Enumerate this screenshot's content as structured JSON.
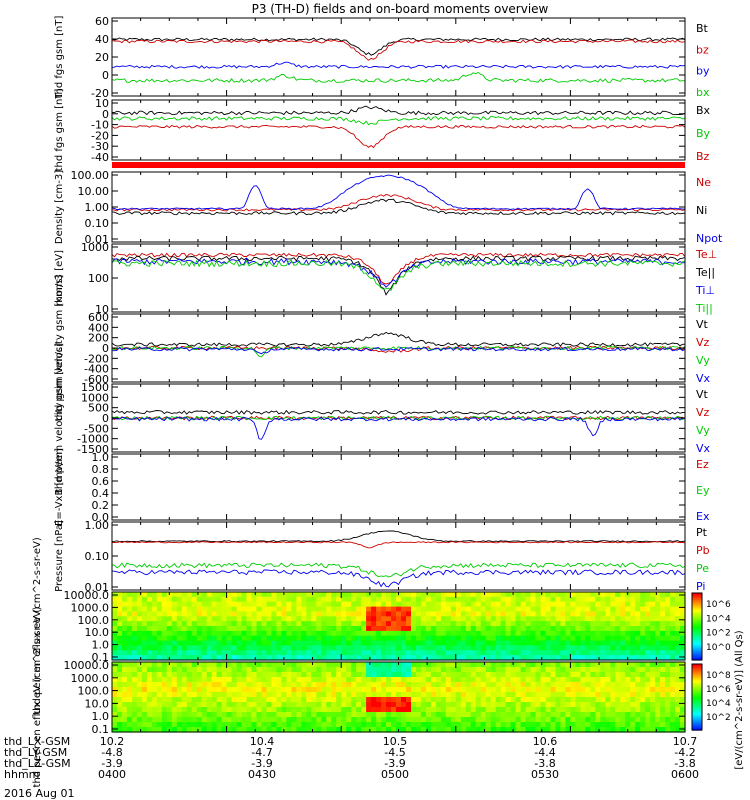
{
  "title": "P3 (TH-D) fields and on-board moments overview",
  "date_label": "2016 Aug 01",
  "colorbar_label": "[eV/(cm^2-s-sr-eV)] (All Qs)",
  "colorbar_ticks": [
    "10^6",
    "10^4",
    "10^2",
    "10^0"
  ],
  "colorbar_ticks_2": [
    "10^8",
    "10^6",
    "10^4",
    "10^2"
  ],
  "x_axis_rows": [
    {
      "label": "thd_LX-GSM",
      "values": [
        "10.2",
        "10.4",
        "10.5",
        "10.6",
        "10.7"
      ]
    },
    {
      "label": "thd_LY-GSM",
      "values": [
        "-4.8",
        "-4.7",
        "-4.5",
        "-4.4",
        "-4.2"
      ]
    },
    {
      "label": "thd_LZ-GSM",
      "values": [
        "-3.9",
        "-3.9",
        "-3.9",
        "-3.8",
        "-3.8"
      ]
    },
    {
      "label": "hhmm",
      "values": [
        "0400",
        "0430",
        "0500",
        "0530",
        "0600"
      ]
    }
  ],
  "chart_data": [
    {
      "type": "line",
      "ylabel": "thd fgs gsm [nT]",
      "ylim": [
        -20,
        60
      ],
      "yticks": [
        "60",
        "40",
        "20",
        "0",
        "-20"
      ],
      "series": [
        {
          "name": "Bt",
          "color": "#000000",
          "base": 38,
          "noise": 1.5,
          "dips": [
            [
              0.45,
              0.03,
              -15
            ]
          ]
        },
        {
          "name": "bz",
          "color": "#cc0000",
          "base": 36,
          "noise": 1.5,
          "dips": [
            [
              0.45,
              0.03,
              -18
            ]
          ]
        },
        {
          "name": "by",
          "color": "#0000ee",
          "base": 10,
          "noise": 1.5,
          "dips": [
            [
              0.3,
              0.02,
              4
            ]
          ]
        },
        {
          "name": "bx",
          "color": "#00cc00",
          "base": -4,
          "noise": 2,
          "dips": [
            [
              0.3,
              0.02,
              5
            ],
            [
              0.63,
              0.02,
              8
            ]
          ]
        }
      ]
    },
    {
      "type": "line",
      "ylabel": "thd fgs gsm [nT]",
      "ylim": [
        -45,
        20
      ],
      "yticks": [
        "10",
        "0",
        "-10",
        "-20",
        "-30",
        "-40"
      ],
      "series": [
        {
          "name": "Bx",
          "color": "#000000",
          "base": 6,
          "noise": 2,
          "dips": [
            [
              0.45,
              0.03,
              6
            ]
          ]
        },
        {
          "name": "By",
          "color": "#00cc00",
          "base": 0,
          "noise": 2,
          "dips": [
            [
              0.45,
              0.03,
              -5
            ]
          ]
        },
        {
          "name": "Bz",
          "color": "#cc0000",
          "base": -9,
          "noise": 1.5,
          "dips": [
            [
              0.45,
              0.03,
              -22
            ]
          ]
        }
      ]
    },
    {
      "type": "line",
      "ylabel": "Density [cm-3]",
      "yscale": "log",
      "ylim": [
        0.01,
        100
      ],
      "yticks": [
        "100.00",
        "10.00",
        "1.00",
        "0.10",
        "0.01"
      ],
      "series": [
        {
          "name": "Ne",
          "color": "#cc0000",
          "base": 0.7,
          "noise": 0.15,
          "dips": [
            [
              0.48,
              0.05,
              4
            ]
          ]
        },
        {
          "name": "Ni",
          "color": "#000000",
          "base": 0.45,
          "noise": 0.2,
          "dips": [
            [
              0.48,
              0.05,
              2
            ]
          ]
        },
        {
          "name": "Npot",
          "color": "#0000ee",
          "base": 0.8,
          "noise": 0.1,
          "dips": [
            [
              0.48,
              0.05,
              60
            ],
            [
              0.25,
              0.01,
              15
            ],
            [
              0.83,
              0.01,
              10
            ]
          ]
        }
      ]
    },
    {
      "type": "line",
      "ylabel": "mom3 [eV]",
      "yscale": "log",
      "ylim": [
        10,
        3000
      ],
      "yticks": [
        "1000",
        "100",
        "10"
      ],
      "series": [
        {
          "name": "Te⊥",
          "color": "#cc0000",
          "base": 1200,
          "noise": 0.15,
          "dips": [
            [
              0.48,
              0.05,
              -1100
            ]
          ]
        },
        {
          "name": "Te||",
          "color": "#000000",
          "base": 900,
          "noise": 0.2,
          "dips": [
            [
              0.48,
              0.05,
              -850
            ]
          ]
        },
        {
          "name": "Ti⊥",
          "color": "#0000ee",
          "base": 700,
          "noise": 0.25,
          "dips": [
            [
              0.48,
              0.05,
              -600
            ]
          ]
        },
        {
          "name": "Ti||",
          "color": "#00cc00",
          "base": 600,
          "noise": 0.25,
          "dips": [
            [
              0.48,
              0.05,
              -540
            ]
          ]
        }
      ]
    },
    {
      "type": "line",
      "ylabel": "thd peim velocity gsm [km/s]",
      "ylim": [
        -600,
        600
      ],
      "yticks": [
        "600",
        "400",
        "200",
        "0",
        "-200",
        "-400",
        "-600"
      ],
      "series": [
        {
          "name": "Vt",
          "color": "#000000",
          "base": 60,
          "noise": 30,
          "dips": [
            [
              0.48,
              0.05,
              200
            ]
          ]
        },
        {
          "name": "Vz",
          "color": "#cc0000",
          "base": 0,
          "noise": 30,
          "dips": [
            [
              0.48,
              0.05,
              -60
            ]
          ]
        },
        {
          "name": "Vy",
          "color": "#00cc00",
          "base": 0,
          "noise": 30,
          "dips": [
            [
              0.26,
              0.01,
              -150
            ]
          ]
        },
        {
          "name": "Vx",
          "color": "#0000ee",
          "base": -20,
          "noise": 30,
          "dips": [
            [
              0.26,
              0.01,
              -100
            ]
          ]
        }
      ]
    },
    {
      "type": "line",
      "ylabel": "thd peem velocity gsm [km/s]",
      "ylim": [
        -1500,
        1500
      ],
      "yticks": [
        "1500",
        "1000",
        "500",
        "0",
        "-500",
        "-1000",
        "-1500"
      ],
      "series": [
        {
          "name": "Vt",
          "color": "#000000",
          "base": 250,
          "noise": 80,
          "dips": []
        },
        {
          "name": "Vz",
          "color": "#cc0000",
          "base": 0,
          "noise": 80,
          "dips": []
        },
        {
          "name": "Vy",
          "color": "#00cc00",
          "base": 0,
          "noise": 80,
          "dips": []
        },
        {
          "name": "Vx",
          "color": "#0000ee",
          "base": -50,
          "noise": 80,
          "dips": [
            [
              0.26,
              0.01,
              -900
            ],
            [
              0.84,
              0.01,
              -800
            ]
          ]
        }
      ]
    },
    {
      "type": "line",
      "ylabel": "E=-VxB [mV/m]",
      "ylim": [
        0,
        1
      ],
      "yticks": [
        "1.0",
        "0.8",
        "0.6",
        "0.4",
        "0.2",
        "0.0"
      ],
      "series": [
        {
          "name": "Ez",
          "color": "#cc0000"
        },
        {
          "name": "Ey",
          "color": "#00cc00"
        },
        {
          "name": "Ex",
          "color": "#0000ee"
        }
      ]
    },
    {
      "type": "line",
      "ylabel": "Pressure [nPa]",
      "yscale": "log",
      "ylim": [
        0.01,
        3
      ],
      "yticks": [
        "1.00",
        "0.10",
        "0.01"
      ],
      "series": [
        {
          "name": "Pt",
          "color": "#000000",
          "base": 0.6,
          "noise": 0.05,
          "dips": [
            [
              0.48,
              0.05,
              0.8
            ]
          ]
        },
        {
          "name": "Pb",
          "color": "#cc0000",
          "base": 0.55,
          "noise": 0.05,
          "dips": [
            [
              0.45,
              0.02,
              -0.2
            ]
          ]
        },
        {
          "name": "Pe",
          "color": "#00cc00",
          "base": 0.08,
          "noise": 0.2,
          "dips": [
            [
              0.48,
              0.05,
              -0.05
            ]
          ]
        },
        {
          "name": "Pi",
          "color": "#0000ee",
          "base": 0.045,
          "noise": 0.2,
          "dips": [
            [
              0.48,
              0.05,
              -0.03
            ]
          ]
        }
      ]
    },
    {
      "type": "heatmap",
      "ylabel": "thd peir en eflux eV (cm^2-s-sr-eV)",
      "yticks": [
        "10000.0",
        "1000.0",
        "100.0",
        "10.0",
        "1.0",
        "0.1"
      ]
    },
    {
      "type": "heatmap",
      "ylabel": "thd peer en eflux eV (cm^2-s-sr-eV)",
      "yticks": [
        "10000.0",
        "1000.0",
        "100.0",
        "10.0",
        "1.0",
        "0.1"
      ]
    }
  ]
}
